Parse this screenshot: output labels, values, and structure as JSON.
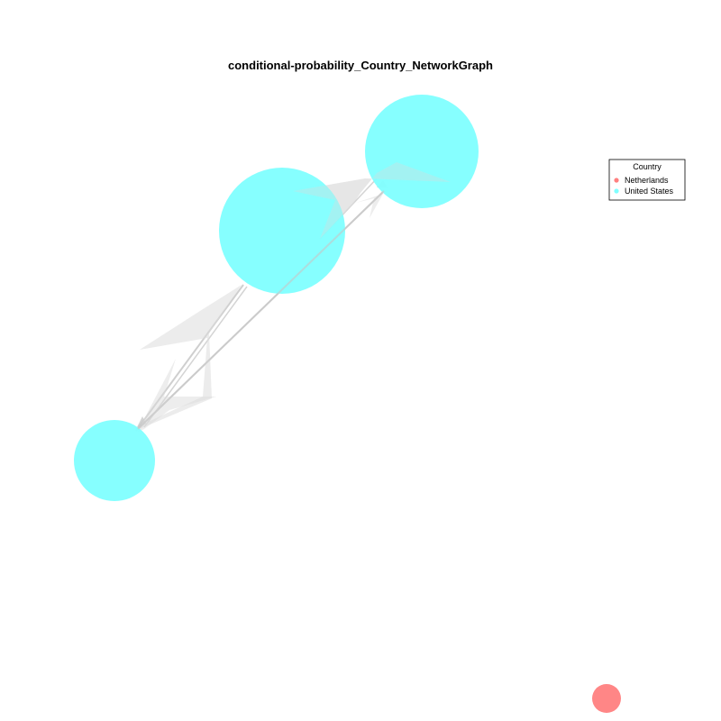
{
  "title": "conditional-probability_Country_NetworkGraph",
  "legend": {
    "title": "Country",
    "items": [
      {
        "label": "Netherlands",
        "color": "#FF8080"
      },
      {
        "label": "United States",
        "color": "#80FFFF"
      }
    ]
  },
  "colors": {
    "netherlands": "#FF8080",
    "united_states": "#80FFFF",
    "edge": "#C8C8C8"
  }
}
